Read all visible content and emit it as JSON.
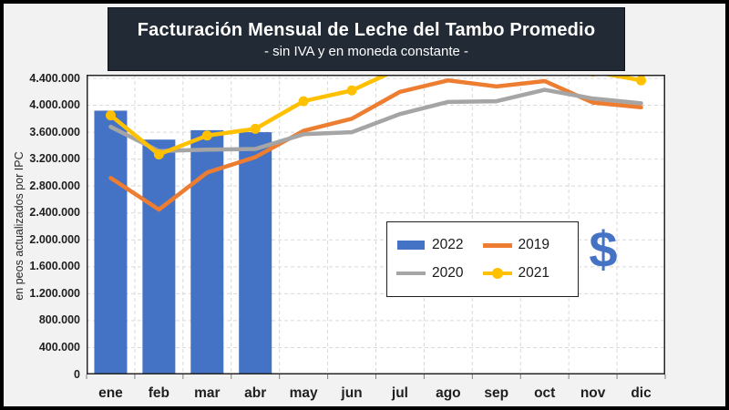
{
  "title": {
    "text": "Facturación Mensual de Leche del Tambo Promedio",
    "subtitle": "- sin IVA y en moneda constante -",
    "bg": "#222A35",
    "color": "#FFFFFF"
  },
  "y_axis": {
    "title": "en peos actualizados por IPC",
    "ticks": [
      "4.400.000",
      "4.000.000",
      "3.600.000",
      "3.200.000",
      "2.800.000",
      "2.400.000",
      "2.000.000",
      "1.600.000",
      "1.200.000",
      "800.000",
      "400.000",
      "0"
    ]
  },
  "x_axis": {
    "categories": [
      "ene",
      "feb",
      "mar",
      "abr",
      "may",
      "jun",
      "jul",
      "ago",
      "sep",
      "oct",
      "nov",
      "dic"
    ]
  },
  "legend": {
    "items": [
      {
        "label": "2022",
        "swatch": "bar",
        "color": "#4472C4"
      },
      {
        "label": "2019",
        "swatch": "line",
        "color": "#ED7D31"
      },
      {
        "label": "2020",
        "swatch": "line",
        "color": "#A5A5A5"
      },
      {
        "label": "2021",
        "swatch": "line-marker",
        "color": "#FFC000"
      }
    ]
  },
  "dollar_icon": {
    "glyph": "$",
    "color": "#4472C4"
  },
  "colors": {
    "plot_bg": "#FFFFFF",
    "frame_bg": "#F2F2F2",
    "frame_border": "#000000",
    "gridline": "#D9D9D9",
    "plot_border": "#262626"
  },
  "chart_data": {
    "type": "bar",
    "subtype": "bars plus lines combo",
    "title": "Facturación Mensual de Leche del Tambo Promedio",
    "subtitle": "- sin IVA y en moneda constante -",
    "ylabel": "en peos actualizados por IPC",
    "ylim": [
      0,
      4400000
    ],
    "ystep": 400000,
    "grid": true,
    "legend_position": "inside, center-right",
    "categories": [
      "ene",
      "feb",
      "mar",
      "abr",
      "may",
      "jun",
      "jul",
      "ago",
      "sep",
      "oct",
      "nov",
      "dic"
    ],
    "series": [
      {
        "name": "2022",
        "type": "bar",
        "color": "#4472C4",
        "values": [
          3920000,
          3490000,
          3630000,
          3600000,
          null,
          null,
          null,
          null,
          null,
          null,
          null,
          null
        ]
      },
      {
        "name": "2019",
        "type": "line",
        "color": "#ED7D31",
        "values": [
          2920000,
          2450000,
          3000000,
          3230000,
          3620000,
          3800000,
          4200000,
          4370000,
          4280000,
          4360000,
          4040000,
          3970000
        ]
      },
      {
        "name": "2020",
        "type": "line",
        "color": "#A5A5A5",
        "values": [
          3680000,
          3320000,
          3340000,
          3350000,
          3570000,
          3600000,
          3870000,
          4050000,
          4060000,
          4230000,
          4100000,
          4030000
        ]
      },
      {
        "name": "2021",
        "type": "line",
        "color": "#FFC000",
        "marker": "circle",
        "values": [
          3850000,
          3270000,
          3550000,
          3650000,
          4060000,
          4220000,
          4550000,
          4700000,
          4700000,
          4750000,
          4500000,
          4370000
        ],
        "note": "jul–nov exceed the 4.400.000 axis maximum and are clipped at the plot top; those values are estimates"
      }
    ]
  }
}
